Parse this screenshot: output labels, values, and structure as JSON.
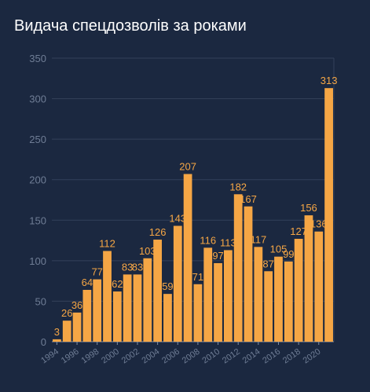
{
  "chart_data": {
    "type": "bar",
    "title": "Видача спецдозволів за роками",
    "xlabel": "",
    "ylabel": "",
    "ylim": [
      0,
      350
    ],
    "yticks": [
      0,
      50,
      100,
      150,
      200,
      250,
      300,
      350
    ],
    "grid": true,
    "categories": [
      "1994",
      "1995",
      "1996",
      "1997",
      "1998",
      "1999",
      "2000",
      "2001",
      "2002",
      "2003",
      "2004",
      "2005",
      "2006",
      "2007",
      "2008",
      "2009",
      "2010",
      "2011",
      "2012",
      "2013",
      "2014",
      "2015",
      "2016",
      "2017",
      "2018",
      "2019",
      "2020",
      "2021"
    ],
    "x_tick_labels": [
      "1994",
      "1996",
      "1998",
      "2000",
      "2002",
      "2004",
      "2006",
      "2008",
      "2010",
      "2012",
      "2014",
      "2016",
      "2018",
      "2020"
    ],
    "values": [
      3,
      26,
      36,
      64,
      77,
      112,
      62,
      83,
      83,
      103,
      126,
      59,
      143,
      207,
      71,
      116,
      97,
      113,
      182,
      167,
      117,
      87,
      105,
      99,
      127,
      156,
      136,
      313
    ],
    "bar_color": "#f5a645",
    "label_color": "#f5a645",
    "background": "#1b2840",
    "grid_color": "#33415a"
  }
}
